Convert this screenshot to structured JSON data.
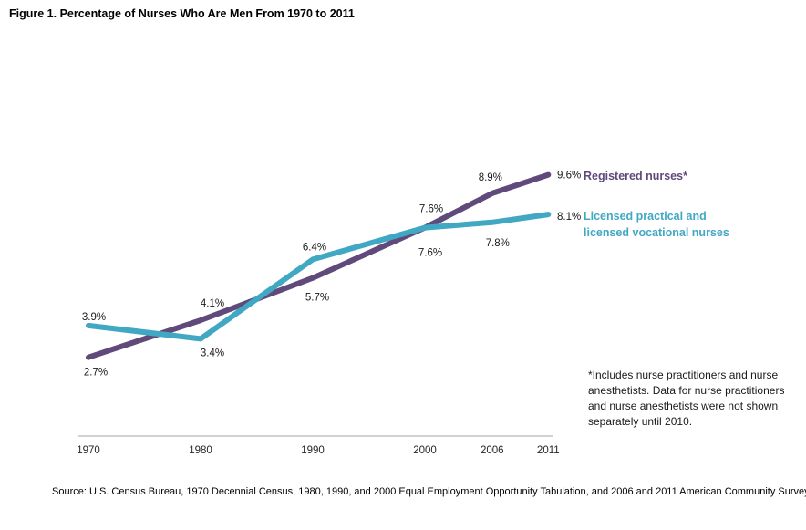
{
  "title": "Figure 1. Percentage of Nurses Who Are Men From 1970 to 2011",
  "chart_data": {
    "type": "line",
    "title": "Figure 1. Percentage of Nurses Who Are Men From 1970 to 2011",
    "x": [
      1970,
      1980,
      1990,
      2000,
      2006,
      2011
    ],
    "x_tick_labels": [
      "1970",
      "1980",
      "1990",
      "2000",
      "2006",
      "2011"
    ],
    "series": [
      {
        "name": "Registered nurses*",
        "values": [
          2.7,
          4.1,
          5.7,
          7.6,
          8.9,
          9.6
        ],
        "labels": [
          "2.7%",
          "4.1%",
          "5.7%",
          "7.6%",
          "8.9%",
          "9.6%"
        ],
        "color": "#604a7b"
      },
      {
        "name": "Licensed practical and licensed vocational nurses",
        "values": [
          3.9,
          3.4,
          6.4,
          7.6,
          7.8,
          8.1
        ],
        "labels": [
          "3.9%",
          "3.4%",
          "6.4%",
          "7.6%",
          "7.8%",
          "8.1%"
        ],
        "color": "#41a8c4"
      }
    ],
    "xlabel": "",
    "ylabel": "",
    "ylim": [
      0,
      10
    ],
    "grid": false,
    "legend_position": "right of line ends",
    "data_labels_shown": true
  },
  "colors": {
    "registered_purple": "#604a7b",
    "lpn_teal": "#41a8c4",
    "axis_line": "#a6a6a6",
    "label_text": "#1a1a1a"
  },
  "legend": {
    "registered": {
      "label": "Registered nurses*"
    },
    "lpn": {
      "lines": [
        "Licensed practical and",
        "licensed vocational nurses"
      ]
    }
  },
  "footnote": {
    "lines": [
      "*Includes nurse practitioners and nurse",
      "anesthetists. Data for nurse practitioners",
      "and nurse anesthetists were not shown",
      "separately until 2010."
    ]
  },
  "source": "Source: U.S. Census Bureau, 1970 Decennial Census, 1980, 1990,  and 2000 Equal Employment Opportunity Tabulation, and 2006 and 2011 American Community Survey"
}
